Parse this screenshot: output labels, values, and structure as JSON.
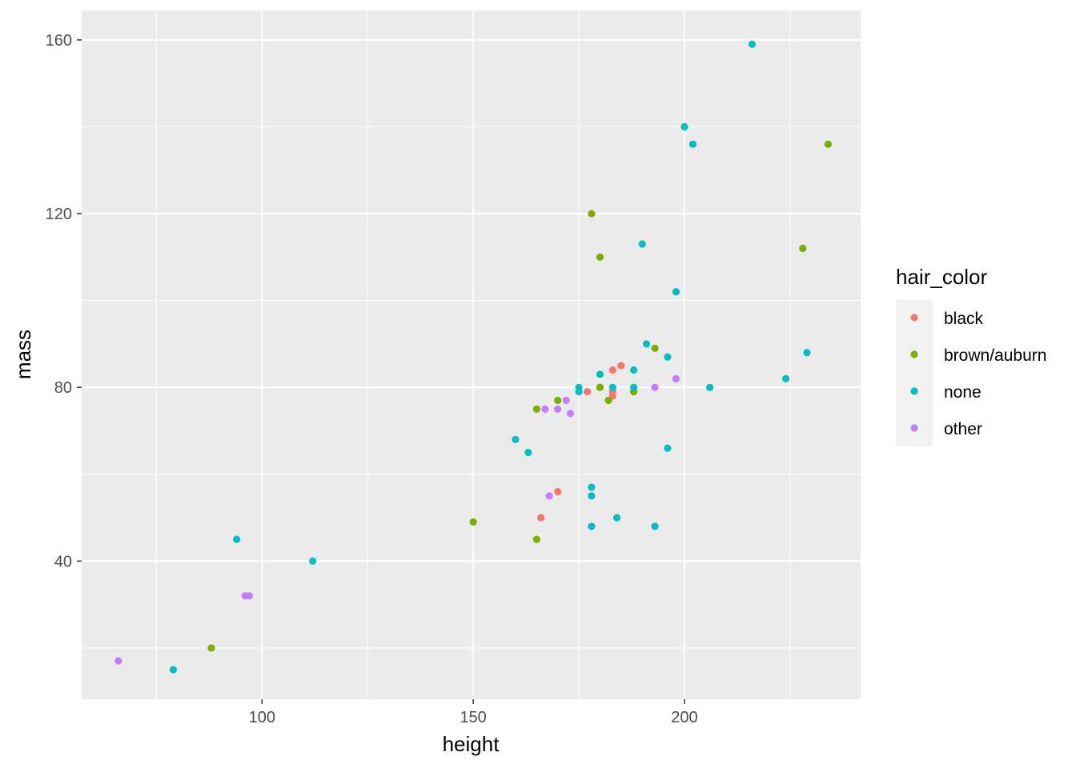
{
  "chart_data": {
    "type": "scatter",
    "xlabel": "height",
    "ylabel": "mass",
    "xlim": [
      57.3,
      241.7
    ],
    "ylim": [
      8.2,
      166.8
    ],
    "x_ticks": [
      100,
      150,
      200
    ],
    "x_tick_labels": [
      "100",
      "150",
      "200"
    ],
    "y_ticks": [
      40,
      80,
      120,
      160
    ],
    "y_tick_labels": [
      "40",
      "80",
      "120",
      "160"
    ],
    "grid": true,
    "legend": {
      "title": "hair_color",
      "placement": "right",
      "entries": [
        "black",
        "brown/auburn",
        "none",
        "other"
      ]
    },
    "colors": {
      "black": "#F8766D",
      "brown/auburn": "#7CAE00",
      "none": "#00BFC4",
      "other": "#C77CFF",
      "panel_background": "#EBEBEB",
      "grid_line": "#FFFFFF",
      "legend_key_background": "#F2F2F2"
    },
    "series": [
      {
        "name": "black",
        "points": [
          [
            177,
            79
          ],
          [
            183,
            84
          ],
          [
            185,
            85
          ],
          [
            183,
            78
          ],
          [
            170,
            56
          ],
          [
            166,
            50
          ],
          [
            183,
            79
          ]
        ]
      },
      {
        "name": "brown/auburn",
        "points": [
          [
            178,
            120
          ],
          [
            180,
            110
          ],
          [
            234,
            136
          ],
          [
            228,
            112
          ],
          [
            193,
            89
          ],
          [
            180,
            80
          ],
          [
            170,
            77
          ],
          [
            182,
            77
          ],
          [
            188,
            79
          ],
          [
            165,
            75
          ],
          [
            150,
            49
          ],
          [
            165,
            45
          ],
          [
            88,
            20
          ]
        ]
      },
      {
        "name": "none",
        "points": [
          [
            216,
            159
          ],
          [
            200,
            140
          ],
          [
            202,
            136
          ],
          [
            190,
            113
          ],
          [
            198,
            102
          ],
          [
            191,
            90
          ],
          [
            196,
            87
          ],
          [
            229,
            88
          ],
          [
            224,
            82
          ],
          [
            206,
            80
          ],
          [
            180,
            83
          ],
          [
            188,
            84
          ],
          [
            175,
            80
          ],
          [
            175,
            79
          ],
          [
            183,
            80
          ],
          [
            188,
            80
          ],
          [
            160,
            68
          ],
          [
            163,
            65
          ],
          [
            196,
            66
          ],
          [
            178,
            57
          ],
          [
            178,
            55
          ],
          [
            184,
            50
          ],
          [
            178,
            48
          ],
          [
            193,
            48
          ],
          [
            94,
            45
          ],
          [
            112,
            40
          ],
          [
            79,
            15
          ]
        ]
      },
      {
        "name": "other",
        "points": [
          [
            198,
            82
          ],
          [
            193,
            80
          ],
          [
            172,
            77
          ],
          [
            167,
            75
          ],
          [
            170,
            75
          ],
          [
            173,
            74
          ],
          [
            168,
            55
          ],
          [
            96,
            32
          ],
          [
            97,
            32
          ],
          [
            66,
            17
          ]
        ]
      }
    ]
  }
}
